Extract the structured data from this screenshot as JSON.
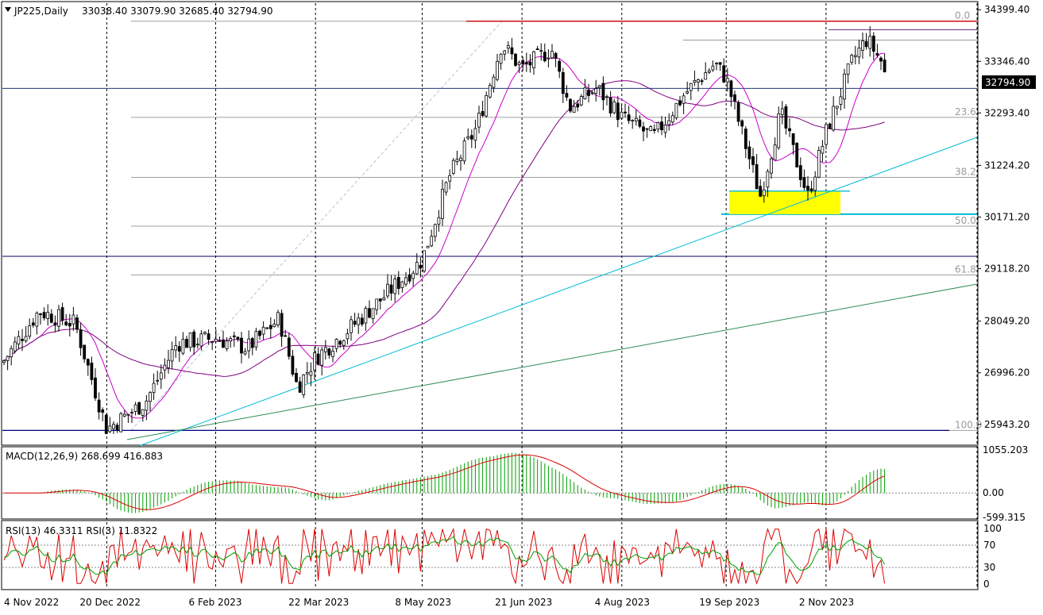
{
  "header": {
    "symbol_label": "JP225,Daily",
    "ohlc": "33038.40 33079.90 32685.40 32794.90"
  },
  "main_panel": {
    "price_ticks": [
      "34399.40",
      "33346.40",
      "32293.40",
      "31224.20",
      "30171.20",
      "29118.20",
      "28049.20",
      "26996.20",
      "25943.20"
    ],
    "current_price_label": "32794.90",
    "fib_levels": [
      {
        "label": "0.0",
        "price": 34165
      },
      {
        "label": "23.6",
        "price": 32205
      },
      {
        "label": "38.2",
        "price": 30980
      },
      {
        "label": "50.0",
        "price": 29985
      },
      {
        "label": "61.8",
        "price": 28990
      },
      {
        "label": "100.0",
        "price": 25820
      }
    ]
  },
  "macd_panel": {
    "label": "MACD(12,26,9) 268.699 416.883",
    "ticks": [
      "1055.203",
      "0.00",
      "-599.315"
    ]
  },
  "rsi_panel": {
    "label": "RSI(13) 46.3311  RSI(3) 11.8322",
    "ticks": [
      "100",
      "70",
      "30",
      "0"
    ]
  },
  "x_axis": {
    "dates": [
      "4 Nov 2022",
      "20 Dec 2022",
      "6 Feb 2023",
      "22 Mar 2023",
      "8 May 2023",
      "21 Jun 2023",
      "4 Aug 2023",
      "19 Sep 2023",
      "2 Nov 2023"
    ]
  },
  "colors": {
    "bull_candle": "#000000",
    "bear_candle": "#000000",
    "ma_fast": "#cc00cc",
    "ma_slow": "#800080",
    "trendline_cyan": "#00bcd4",
    "trendline_green": "#2e8b57",
    "resistance": "#cc0000",
    "macd_hist": "#00a000",
    "macd_signal": "#dd0000",
    "rsi_13": "#00a000",
    "rsi_3": "#dd0000",
    "support_zone": "#ffff00"
  },
  "chart_data": {
    "type": "candlestick",
    "x_dates": [
      "4 Nov 2022",
      "20 Dec 2022",
      "6 Feb 2023",
      "22 Mar 2023",
      "8 May 2023",
      "21 Jun 2023",
      "4 Aug 2023",
      "19 Sep 2023",
      "2 Nov 2023"
    ],
    "price_path": [
      {
        "date": "4 Nov 2022",
        "close": 27200
      },
      {
        "date": "20 Nov 2022",
        "close": 28250
      },
      {
        "date": "6 Dec 2022",
        "close": 28000
      },
      {
        "date": "20 Dec 2022",
        "close": 25850
      },
      {
        "date": "6 Jan 2023",
        "close": 26400
      },
      {
        "date": "20 Jan 2023",
        "close": 27600
      },
      {
        "date": "6 Feb 2023",
        "close": 27700
      },
      {
        "date": "20 Feb 2023",
        "close": 27500
      },
      {
        "date": "6 Mar 2023",
        "close": 28100
      },
      {
        "date": "14 Mar 2023",
        "close": 26700
      },
      {
        "date": "22 Mar 2023",
        "close": 27300
      },
      {
        "date": "6 Apr 2023",
        "close": 27900
      },
      {
        "date": "20 Apr 2023",
        "close": 28500
      },
      {
        "date": "8 May 2023",
        "close": 29300
      },
      {
        "date": "20 May 2023",
        "close": 31000
      },
      {
        "date": "1 Jun 2023",
        "close": 32000
      },
      {
        "date": "12 Jun 2023",
        "close": 33700
      },
      {
        "date": "21 Jun 2023",
        "close": 33200
      },
      {
        "date": "4 Jul 2023",
        "close": 33600
      },
      {
        "date": "12 Jul 2023",
        "close": 32400
      },
      {
        "date": "24 Jul 2023",
        "close": 32800
      },
      {
        "date": "4 Aug 2023",
        "close": 32200
      },
      {
        "date": "18 Aug 2023",
        "close": 31800
      },
      {
        "date": "1 Sep 2023",
        "close": 32700
      },
      {
        "date": "14 Sep 2023",
        "close": 33300
      },
      {
        "date": "19 Sep 2023",
        "close": 33000
      },
      {
        "date": "4 Oct 2023",
        "close": 30600
      },
      {
        "date": "13 Oct 2023",
        "close": 32300
      },
      {
        "date": "25 Oct 2023",
        "close": 30600
      },
      {
        "date": "2 Nov 2023",
        "close": 31900
      },
      {
        "date": "14 Nov 2023",
        "close": 33400
      },
      {
        "date": "20 Nov 2023",
        "close": 33800
      },
      {
        "date": "27 Nov 2023",
        "close": 33300
      },
      {
        "date": "29 Nov 2023",
        "close": 32794.9
      }
    ],
    "last_bar": {
      "open": 33038.4,
      "high": 33079.9,
      "low": 32685.4,
      "close": 32794.9
    },
    "ylim": [
      25600,
      34500
    ],
    "macd": {
      "fast": 12,
      "slow": 26,
      "signal": 9,
      "main": 268.699,
      "signal_value": 416.883,
      "ylim": [
        -599.315,
        1055.203
      ]
    },
    "rsi": {
      "period_slow": 13,
      "value_slow": 46.3311,
      "period_fast": 3,
      "value_fast": 11.8322,
      "levels": [
        30,
        70
      ],
      "ylim": [
        0,
        100
      ]
    },
    "grid": true
  }
}
